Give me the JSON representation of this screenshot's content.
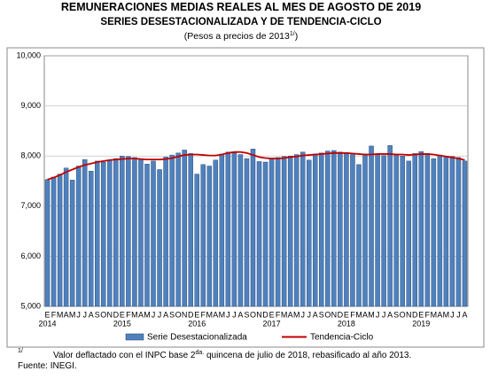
{
  "chart_data": {
    "type": "bar_line",
    "title": "REMUNERACIONES MEDIAS REALES AL MES DE AGOSTO DE 2019",
    "subtitle": "SERIES DESESTACIONALIZADA Y DE TENDENCIA-CICLO",
    "units_text": "(Pesos a precios de 2013",
    "units_sup": "1/",
    "units_close": ")",
    "categories": [
      "E",
      "F",
      "M",
      "A",
      "M",
      "J",
      "J",
      "A",
      "S",
      "O",
      "N",
      "D",
      "E",
      "F",
      "M",
      "A",
      "M",
      "J",
      "J",
      "A",
      "S",
      "O",
      "N",
      "D",
      "E",
      "F",
      "M",
      "A",
      "M",
      "J",
      "J",
      "A",
      "S",
      "O",
      "N",
      "D",
      "E",
      "F",
      "M",
      "A",
      "M",
      "J",
      "J",
      "A",
      "S",
      "O",
      "N",
      "D",
      "E",
      "F",
      "M",
      "A",
      "M",
      "J",
      "J",
      "A",
      "S",
      "O",
      "N",
      "D",
      "E",
      "F",
      "M",
      "A",
      "M",
      "J",
      "J",
      "A"
    ],
    "years": [
      "2014",
      "2015",
      "2016",
      "2017",
      "2018",
      "2019"
    ],
    "series": [
      {
        "name": "Serie Desestacionalizada",
        "type": "bar",
        "color": "#4f81bd",
        "values": [
          7530,
          7580,
          7640,
          7760,
          7520,
          7800,
          7930,
          7700,
          7900,
          7880,
          7920,
          7950,
          8000,
          7990,
          7970,
          7940,
          7840,
          7900,
          7730,
          7980,
          8020,
          8060,
          8120,
          8050,
          7640,
          7830,
          7800,
          7920,
          8040,
          8080,
          8060,
          8030,
          7950,
          8140,
          7890,
          7880,
          7960,
          7970,
          7990,
          8000,
          8030,
          8080,
          7920,
          8040,
          8060,
          8100,
          8110,
          8080,
          8070,
          8030,
          7830,
          8040,
          8200,
          8030,
          8010,
          8210,
          8040,
          8000,
          7900,
          8050,
          8090,
          8050,
          7950,
          8020,
          8000,
          7990,
          7970,
          7900
        ]
      },
      {
        "name": "Tendencia-Ciclo",
        "type": "line",
        "color": "#c00000",
        "values": [
          7530,
          7570,
          7620,
          7680,
          7730,
          7780,
          7820,
          7850,
          7880,
          7900,
          7920,
          7930,
          7940,
          7950,
          7950,
          7940,
          7930,
          7930,
          7930,
          7940,
          7960,
          7990,
          8020,
          8030,
          8030,
          8020,
          8010,
          8010,
          8030,
          8060,
          8080,
          8080,
          8060,
          8020,
          7980,
          7960,
          7950,
          7950,
          7960,
          7980,
          7990,
          8010,
          8020,
          8030,
          8040,
          8050,
          8060,
          8060,
          8060,
          8050,
          8040,
          8030,
          8030,
          8040,
          8040,
          8040,
          8030,
          8030,
          8020,
          8030,
          8040,
          8040,
          8030,
          8010,
          7990,
          7970,
          7950,
          7920
        ]
      }
    ],
    "ylim": [
      5000,
      10000
    ],
    "yticks": [
      {
        "value": 5000,
        "label": "5,000"
      },
      {
        "value": 6000,
        "label": "6,000"
      },
      {
        "value": 7000,
        "label": "7,000"
      },
      {
        "value": 8000,
        "label": "8,000"
      },
      {
        "value": 9000,
        "label": "9,000"
      },
      {
        "value": 10000,
        "label": "10,000"
      }
    ],
    "grid": true,
    "footnote_mark": "1/",
    "footnote_text": "Valor deflactado con el INPC base 2",
    "footnote_sup": "da.",
    "footnote_rest": " quincena de julio de 2018, rebasificado al año 2013.",
    "source": "Fuente: INEGI."
  }
}
